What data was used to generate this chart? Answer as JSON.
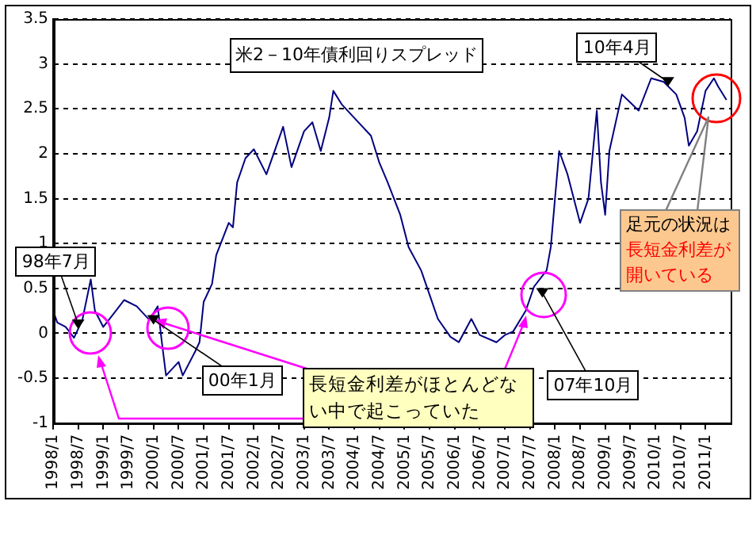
{
  "chart_data": {
    "type": "line",
    "title": "米2－10年債利回りスプレッド",
    "x": [
      "1998-01",
      "1998-02",
      "1998-04",
      "1998-06",
      "1998-08",
      "1998-10",
      "1998-11",
      "1999-01",
      "1999-04",
      "1999-06",
      "1999-09",
      "1999-10",
      "1999-12",
      "2000-02",
      "2000-03",
      "2000-04",
      "2000-07",
      "2000-08",
      "2000-11",
      "2000-12",
      "2001-01",
      "2001-03",
      "2001-04",
      "2001-07",
      "2001-08",
      "2001-09",
      "2001-11",
      "2002-01",
      "2002-04",
      "2002-08",
      "2002-10",
      "2003-01",
      "2003-03",
      "2003-05",
      "2003-07",
      "2003-08",
      "2003-10",
      "2004-01",
      "2004-05",
      "2004-07",
      "2004-09",
      "2004-12",
      "2005-02",
      "2005-05",
      "2005-07",
      "2005-09",
      "2005-12",
      "2006-02",
      "2006-05",
      "2006-07",
      "2006-11",
      "2007-01",
      "2007-03",
      "2007-06",
      "2007-08",
      "2007-11",
      "2007-12",
      "2008-01",
      "2008-02",
      "2008-04",
      "2008-06",
      "2008-07",
      "2008-09",
      "2008-11",
      "2008-12",
      "2009-01",
      "2009-02",
      "2009-05",
      "2009-07",
      "2009-09",
      "2009-12",
      "2010-03",
      "2010-06",
      "2010-08",
      "2010-09",
      "2010-11",
      "2011-01",
      "2011-03",
      "2011-04",
      "2011-06"
    ],
    "series": [
      {
        "color": "#000080",
        "values": [
          0.25,
          0.12,
          0.07,
          -0.05,
          0.15,
          0.6,
          0.25,
          0.07,
          0.25,
          0.37,
          0.3,
          0.25,
          0.15,
          0.3,
          -0.1,
          -0.47,
          -0.32,
          -0.47,
          -0.2,
          -0.1,
          0.35,
          0.55,
          0.87,
          1.23,
          1.18,
          1.68,
          1.95,
          2.05,
          1.77,
          2.3,
          1.85,
          2.25,
          2.35,
          2.03,
          2.4,
          2.7,
          2.55,
          2.4,
          2.2,
          1.9,
          1.68,
          1.32,
          0.96,
          0.7,
          0.43,
          0.16,
          -0.04,
          -0.1,
          0.16,
          -0.02,
          -0.1,
          -0.02,
          0.02,
          0.25,
          0.52,
          0.7,
          0.96,
          1.5,
          2.03,
          1.77,
          1.41,
          1.23,
          1.5,
          2.48,
          1.68,
          1.32,
          2.03,
          2.66,
          2.57,
          2.48,
          2.84,
          2.8,
          2.66,
          2.4,
          2.09,
          2.25,
          2.7,
          2.84,
          2.75,
          2.6
        ]
      }
    ],
    "xlim": [
      "1998-01",
      "2011-07"
    ],
    "xticks": [
      {
        "value": "1998-01",
        "label": "1998/1"
      },
      {
        "value": "1998-07",
        "label": "1998/7"
      },
      {
        "value": "1999-01",
        "label": "1999/1"
      },
      {
        "value": "1999-07",
        "label": "1999/7"
      },
      {
        "value": "2000-01",
        "label": "2000/1"
      },
      {
        "value": "2000-07",
        "label": "2000/7"
      },
      {
        "value": "2001-01",
        "label": "2001/1"
      },
      {
        "value": "2001-07",
        "label": "2001/7"
      },
      {
        "value": "2002-01",
        "label": "2002/1"
      },
      {
        "value": "2002-07",
        "label": "2002/7"
      },
      {
        "value": "2003-01",
        "label": "2003/1"
      },
      {
        "value": "2003-07",
        "label": "2003/7"
      },
      {
        "value": "2004-01",
        "label": "2004/1"
      },
      {
        "value": "2004-07",
        "label": "2004/7"
      },
      {
        "value": "2005-01",
        "label": "2005/1"
      },
      {
        "value": "2005-07",
        "label": "2005/7"
      },
      {
        "value": "2006-01",
        "label": "2006/1"
      },
      {
        "value": "2006-07",
        "label": "2006/7"
      },
      {
        "value": "2007-01",
        "label": "2007/1"
      },
      {
        "value": "2007-07",
        "label": "2007/7"
      },
      {
        "value": "2008-01",
        "label": "2008/1"
      },
      {
        "value": "2008-07",
        "label": "2008/7"
      },
      {
        "value": "2009-01",
        "label": "2009/1"
      },
      {
        "value": "2009-07",
        "label": "2009/7"
      },
      {
        "value": "2010-01",
        "label": "2010/1"
      },
      {
        "value": "2010-07",
        "label": "2010/7"
      },
      {
        "value": "2011-01",
        "label": "2011/1"
      }
    ],
    "ylim": [
      -1,
      3.5
    ],
    "yticks": [
      -1,
      -0.5,
      0,
      0.5,
      1,
      1.5,
      2,
      2.5,
      3,
      3.5
    ],
    "grid": "y",
    "legend": false,
    "marker": "none",
    "line_style": "solid",
    "annotations": [
      {
        "text": "98年7月",
        "x": "1998-07",
        "y": 0.1
      },
      {
        "text": "00年1月",
        "x": "2000-01",
        "y": 0.15
      },
      {
        "text": "07年10月",
        "x": "2007-10",
        "y": 0.45
      },
      {
        "text": "10年4月",
        "x": "2010-04",
        "y": 2.8
      },
      {
        "text": "長短金利差がほとんどない中で起こっていた",
        "x": "2000-01",
        "y": 0.15
      },
      "足元の状況は",
      "長短金利差が開いている"
    ]
  }
}
